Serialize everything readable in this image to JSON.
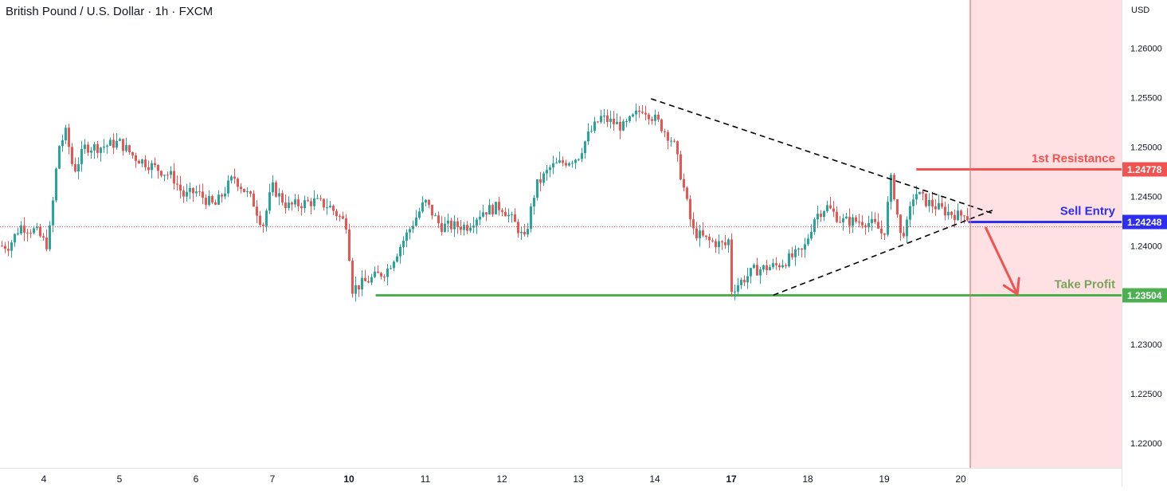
{
  "header": {
    "title": "British Pound / U.S. Dollar · 1h · FXCM"
  },
  "colors": {
    "up": "#26a69a",
    "down": "#ef5350",
    "forecast_zone": "#ffe0e3",
    "forecast_line": "#e57373",
    "resistance": "#f05350",
    "entry": "#2e2ef0",
    "take_profit": "#4caf50",
    "take_profit_text": "#7aa35c",
    "arrow": "#f05350",
    "trendline": "#000000",
    "axis_text": "#131722"
  },
  "chart_data": {
    "type": "candlestick",
    "instrument": "British Pound / U.S. Dollar",
    "timeframe": "1h",
    "source": "FXCM",
    "currency_label": "USD",
    "ylim": [
      1.2175,
      1.2649
    ],
    "y_ticks": [
      "1.22000",
      "1.22500",
      "1.23000",
      "1.23500",
      "1.24000",
      "1.24500",
      "1.25000",
      "1.25500",
      "1.26000"
    ],
    "x_ticks": [
      "4",
      "5",
      "6",
      "7",
      "10",
      "11",
      "12",
      "13",
      "14",
      "17",
      "18",
      "19",
      "20"
    ],
    "x_tick_bold": [
      "10",
      "17"
    ],
    "current_price": 1.242,
    "forecast_start_day": 20.12,
    "path": [
      [
        3.55,
        1.24
      ],
      [
        3.7,
        1.242
      ],
      [
        3.9,
        1.2415
      ],
      [
        4.0,
        1.2405
      ],
      [
        4.06,
        1.24
      ],
      [
        4.12,
        1.244
      ],
      [
        4.2,
        1.25
      ],
      [
        4.3,
        1.2515
      ],
      [
        4.4,
        1.2475
      ],
      [
        4.55,
        1.25
      ],
      [
        4.75,
        1.25
      ],
      [
        5.0,
        1.2505
      ],
      [
        5.2,
        1.249
      ],
      [
        5.45,
        1.248
      ],
      [
        5.7,
        1.247
      ],
      [
        5.85,
        1.245
      ],
      [
        6.0,
        1.2455
      ],
      [
        6.25,
        1.244
      ],
      [
        6.5,
        1.247
      ],
      [
        6.75,
        1.2445
      ],
      [
        6.88,
        1.242
      ],
      [
        7.0,
        1.246
      ],
      [
        7.2,
        1.244
      ],
      [
        7.55,
        1.2445
      ],
      [
        7.75,
        1.244
      ],
      [
        8.05,
        1.242
      ],
      [
        8.3,
        1.242
      ],
      [
        8.55,
        1.241
      ],
      [
        8.8,
        1.243
      ],
      [
        8.92,
        1.244
      ],
      [
        9.0,
        1.243
      ],
      [
        10.02,
        1.2355
      ],
      [
        10.5,
        1.2375
      ],
      [
        10.75,
        1.241
      ],
      [
        11.0,
        1.2445
      ],
      [
        11.2,
        1.242
      ],
      [
        11.55,
        1.242
      ],
      [
        11.75,
        1.2435
      ],
      [
        12.0,
        1.244
      ],
      [
        12.2,
        1.242
      ],
      [
        12.3,
        1.2405
      ],
      [
        12.45,
        1.246
      ],
      [
        12.65,
        1.248
      ],
      [
        13.0,
        1.249
      ],
      [
        13.12,
        1.251
      ],
      [
        13.3,
        1.253
      ],
      [
        13.6,
        1.252
      ],
      [
        13.85,
        1.254
      ],
      [
        14.05,
        1.2525
      ],
      [
        14.25,
        1.2505
      ],
      [
        14.38,
        1.246
      ],
      [
        14.5,
        1.2415
      ],
      [
        14.7,
        1.2405
      ],
      [
        14.95,
        1.24
      ],
      [
        15.0,
        1.2415
      ],
      [
        15.12,
        1.242
      ],
      [
        15.22,
        1.239
      ],
      [
        15.35,
        1.2405
      ],
      [
        17.0,
        1.2355
      ],
      [
        17.3,
        1.2375
      ],
      [
        17.6,
        1.238
      ],
      [
        17.95,
        1.2395
      ],
      [
        18.1,
        1.243
      ],
      [
        18.25,
        1.244
      ],
      [
        18.45,
        1.2425
      ],
      [
        18.75,
        1.2425
      ],
      [
        18.9,
        1.242
      ],
      [
        19.0,
        1.241
      ],
      [
        19.1,
        1.247
      ],
      [
        19.22,
        1.241
      ],
      [
        19.3,
        1.242
      ],
      [
        19.4,
        1.2455
      ],
      [
        19.55,
        1.2445
      ],
      [
        19.8,
        1.2435
      ],
      [
        20.0,
        1.243
      ],
      [
        20.05,
        1.2435
      ],
      [
        20.1,
        1.2428
      ]
    ],
    "levels": [
      {
        "name": "1st Resistance",
        "value": 1.24778,
        "label": "1.24778",
        "from_day": 19.42
      },
      {
        "name": "Sell Entry",
        "value": 1.24248,
        "label": "1.24248",
        "from_day": 20.1
      },
      {
        "name": "Take Profit",
        "value": 1.23504,
        "label": "1.23504",
        "from_day": 10.35
      }
    ],
    "trendlines": [
      {
        "from": [
          13.95,
          1.2549
        ],
        "to": [
          20.45,
          1.2432
        ]
      },
      {
        "from": [
          17.55,
          1.235
        ],
        "to": [
          20.45,
          1.2437
        ]
      }
    ],
    "projection_arrow": {
      "from": [
        20.33,
        1.2418
      ],
      "to": [
        20.74,
        1.2351
      ]
    }
  }
}
